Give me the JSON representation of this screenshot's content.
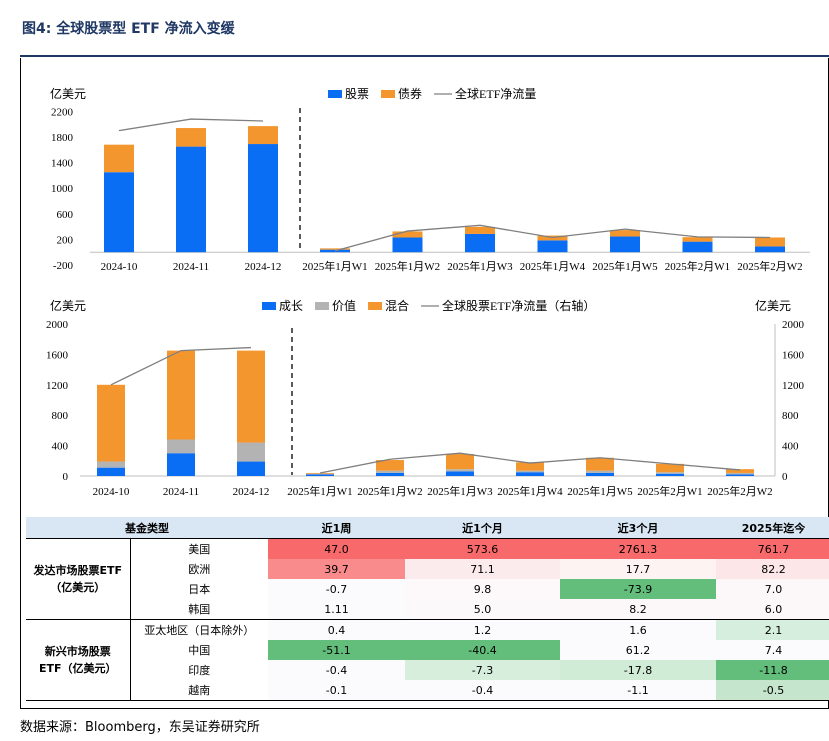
{
  "figure": {
    "title": "图4: 全球股票型 ETF 净流入变缓",
    "source": "数据来源：Bloomberg，东吴证券研究所"
  },
  "chart_data": [
    {
      "type": "bar",
      "stacked": true,
      "unit_label": "亿美元",
      "categories": [
        "2024-10",
        "2024-11",
        "2024-12",
        "2025年1月W1",
        "2025年1月W2",
        "2025年1月W3",
        "2025年1月W4",
        "2025年1月W5",
        "2025年2月W1",
        "2025年2月W2"
      ],
      "series": [
        {
          "name": "股票",
          "kind": "bar",
          "color": "#0a6ef5",
          "values": [
            1250,
            1650,
            1690,
            40,
            230,
            285,
            185,
            245,
            165,
            90
          ]
        },
        {
          "name": "债券",
          "kind": "bar",
          "color": "#f4962e",
          "values": [
            430,
            290,
            280,
            20,
            95,
            110,
            75,
            100,
            70,
            140
          ]
        },
        {
          "name": "全球ETF净流量",
          "kind": "line",
          "color": "#7f7f7f",
          "values": [
            1900,
            2080,
            2050,
            20,
            330,
            420,
            230,
            360,
            240,
            230
          ]
        }
      ],
      "yticks": [
        "2200",
        "1800",
        "1400",
        "1000",
        "600",
        "200",
        "-200"
      ],
      "ylim": [
        -200,
        2300
      ],
      "legend_position": "top",
      "divider_after": "2024-12"
    },
    {
      "type": "bar",
      "stacked": true,
      "unit_label_left": "亿美元",
      "unit_label_right": "亿美元",
      "categories": [
        "2024-10",
        "2024-11",
        "2024-12",
        "2025年1月W1",
        "2025年1月W2",
        "2025年1月W3",
        "2025年1月W4",
        "2025年1月W5",
        "2025年2月W1",
        "2025年2月W2"
      ],
      "series": [
        {
          "name": "成长",
          "kind": "bar",
          "color": "#0a6ef5",
          "values": [
            110,
            300,
            190,
            20,
            40,
            60,
            50,
            40,
            30,
            20
          ]
        },
        {
          "name": "价值",
          "kind": "bar",
          "color": "#b3b3b3",
          "values": [
            80,
            180,
            250,
            10,
            30,
            30,
            20,
            30,
            20,
            20
          ]
        },
        {
          "name": "混合",
          "kind": "bar",
          "color": "#f4962e",
          "values": [
            1010,
            1170,
            1210,
            10,
            140,
            200,
            110,
            170,
            110,
            50
          ]
        },
        {
          "name": "全球股票ETF净流量（右轴）",
          "kind": "line",
          "color": "#7f7f7f",
          "values": [
            1200,
            1650,
            1690,
            40,
            220,
            300,
            170,
            240,
            160,
            80
          ]
        }
      ],
      "yticks": [
        "2000",
        "1600",
        "1200",
        "800",
        "400",
        "0"
      ],
      "ylim": [
        0,
        2000
      ],
      "y2ticks": [
        "2000",
        "1600",
        "1200",
        "800",
        "400",
        "0"
      ],
      "y2lim": [
        0,
        2000
      ],
      "legend_position": "top",
      "divider_after": "2024-12"
    },
    {
      "type": "table",
      "columns": [
        "基金类型",
        "",
        "近1周",
        "近1个月",
        "近3个月",
        "2025年迄今"
      ],
      "groups": [
        {
          "label_lines": [
            "发达市场股票ETF",
            "（亿美元）"
          ],
          "rows": [
            {
              "region": "美国",
              "values": [
                "47.0",
                "573.6",
                "2761.3",
                "761.7"
              ],
              "colors": [
                "#f8696b",
                "#f8696b",
                "#f8696b",
                "#f8696b"
              ]
            },
            {
              "region": "欧洲",
              "values": [
                "39.7",
                "71.1",
                "17.7",
                "82.2"
              ],
              "colors": [
                "#f98b8d",
                "#fcebec",
                "#fdf3f3",
                "#fce6e7"
              ]
            },
            {
              "region": "日本",
              "values": [
                "-0.7",
                "9.8",
                "-73.9",
                "7.0"
              ],
              "colors": [
                "#fbfbfd",
                "#fdf8f9",
                "#63be7b",
                "#fcf8f9"
              ]
            },
            {
              "region": "韩国",
              "values": [
                "1.11",
                "5.0",
                "8.2",
                "6.0"
              ],
              "colors": [
                "#fbfafc",
                "#fcf9fa",
                "#fcf8f9",
                "#fcf8f9"
              ]
            }
          ]
        },
        {
          "label_lines": [
            "新兴市场股票",
            "ETF（亿美元）"
          ],
          "rows": [
            {
              "region": "亚太地区（日本除外）",
              "values": [
                "0.4",
                "1.2",
                "1.6",
                "2.1"
              ],
              "colors": [
                "#fbfbfd",
                "#fbfbfd",
                "#fbfbfd",
                "#d6eedd"
              ]
            },
            {
              "region": "中国",
              "values": [
                "-51.1",
                "-40.4",
                "61.2",
                "7.4"
              ],
              "colors": [
                "#63be7b",
                "#63be7b",
                "#fbfbfd",
                "#fbfbfd"
              ]
            },
            {
              "region": "印度",
              "values": [
                "-0.4",
                "-7.3",
                "-17.8",
                "-11.8"
              ],
              "colors": [
                "#fbfbfd",
                "#d7eedd",
                "#d0ebd6",
                "#63be7b"
              ]
            },
            {
              "region": "越南",
              "values": [
                "-0.1",
                "-0.4",
                "-1.1",
                "-0.5"
              ],
              "colors": [
                "#fbfbfd",
                "#fbfbfd",
                "#fbfbfd",
                "#c5e6cd"
              ]
            }
          ]
        }
      ]
    }
  ]
}
